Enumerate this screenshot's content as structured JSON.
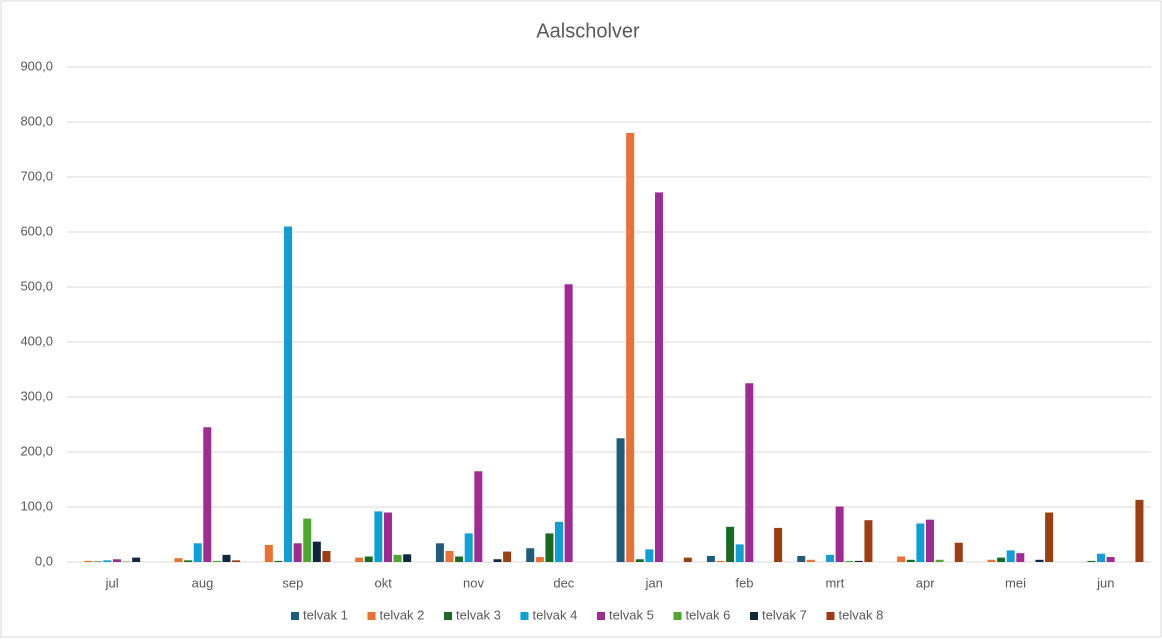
{
  "chart_data": {
    "type": "bar",
    "title": "Aalscholver",
    "categories": [
      "jul",
      "aug",
      "sep",
      "okt",
      "nov",
      "dec",
      "jan",
      "feb",
      "mrt",
      "apr",
      "mei",
      "jun"
    ],
    "series": [
      {
        "name": "telvak 1",
        "color": "#1f5c7a",
        "values": [
          0,
          0,
          0,
          0,
          34,
          25,
          225,
          11,
          11,
          0,
          0,
          0
        ]
      },
      {
        "name": "telvak 2",
        "color": "#e97132",
        "values": [
          2,
          7,
          31,
          8,
          20,
          9,
          780,
          2,
          4,
          10,
          4,
          0
        ]
      },
      {
        "name": "telvak 3",
        "color": "#196b24",
        "values": [
          1,
          3,
          2,
          10,
          10,
          52,
          5,
          64,
          0,
          4,
          8,
          2
        ]
      },
      {
        "name": "telvak 4",
        "color": "#0f9ed5",
        "values": [
          3,
          34,
          610,
          92,
          52,
          73,
          23,
          32,
          13,
          70,
          21,
          15
        ]
      },
      {
        "name": "telvak 5",
        "color": "#a02b93",
        "values": [
          5,
          245,
          34,
          90,
          165,
          505,
          672,
          325,
          101,
          77,
          16,
          9
        ]
      },
      {
        "name": "telvak 6",
        "color": "#4ea72e",
        "values": [
          1,
          2,
          79,
          13,
          0,
          0,
          0,
          0,
          2,
          4,
          0,
          0
        ]
      },
      {
        "name": "telvak 7",
        "color": "#0e2841",
        "values": [
          8,
          13,
          37,
          14,
          5,
          0,
          0,
          0,
          2,
          0,
          4,
          0
        ]
      },
      {
        "name": "telvak 8",
        "color": "#9c3d12",
        "values": [
          0,
          3,
          20,
          0,
          19,
          0,
          8,
          62,
          76,
          35,
          90,
          113
        ]
      }
    ],
    "ylim": [
      0,
      900
    ],
    "yticks": [
      {
        "value": 0,
        "label": "0,0"
      },
      {
        "value": 100,
        "label": "100,0"
      },
      {
        "value": 200,
        "label": "200,0"
      },
      {
        "value": 300,
        "label": "300,0"
      },
      {
        "value": 400,
        "label": "400,0"
      },
      {
        "value": 500,
        "label": "500,0"
      },
      {
        "value": 600,
        "label": "600,0"
      },
      {
        "value": 700,
        "label": "700,0"
      },
      {
        "value": 800,
        "label": "800,0"
      },
      {
        "value": 900,
        "label": "900,0"
      }
    ],
    "grid": true,
    "legend": "bottom"
  }
}
